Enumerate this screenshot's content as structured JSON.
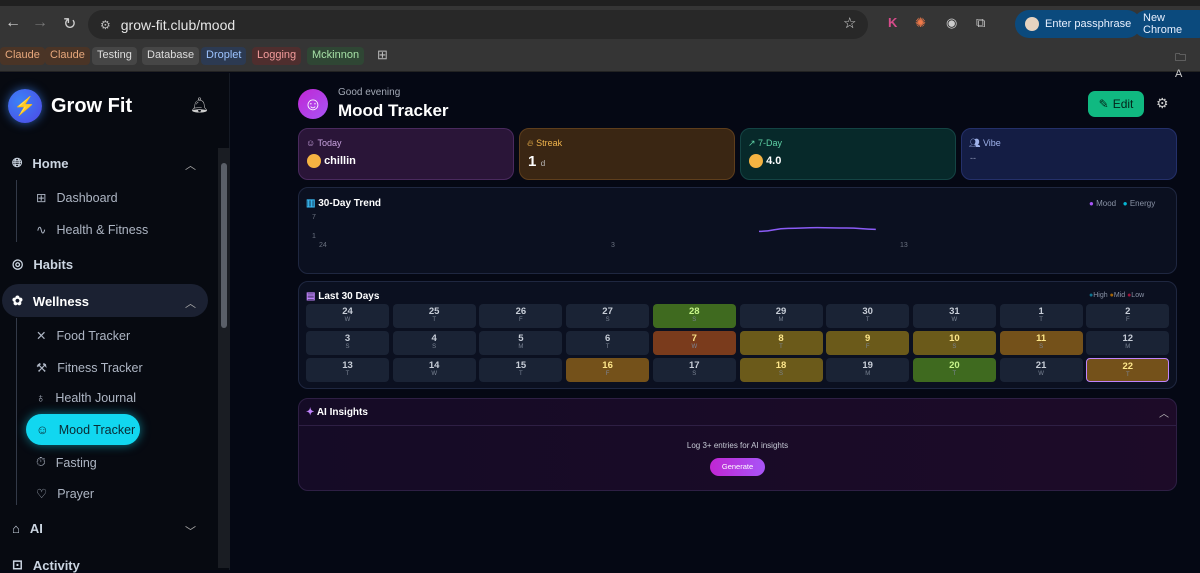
{
  "browser": {
    "url": "grow-fit.club/mood",
    "passphrase": "Enter passphrase",
    "new_chrome": "New Chrome",
    "bookmarks": [
      {
        "label": "Claude",
        "color": "#e8a87c",
        "bg": "#4a3426"
      },
      {
        "label": "Claude",
        "color": "#e8a87c",
        "bg": "#4a3426"
      },
      {
        "label": "Testing",
        "color": "#ddd",
        "bg": "#464646"
      },
      {
        "label": "Database",
        "color": "#ddd",
        "bg": "#464646"
      },
      {
        "label": "Droplet",
        "color": "#9cc3ff",
        "bg": "#2c3a52"
      },
      {
        "label": "Logging",
        "color": "#f29b9b",
        "bg": "#4f2e2e"
      },
      {
        "label": "Mckinnon",
        "color": "#a6e0a6",
        "bg": "#2f4634"
      }
    ],
    "other_bookmarks": "A"
  },
  "sidebar": {
    "brand": "Grow Fit",
    "sections": [
      {
        "label": "Home"
      },
      {
        "label": "Habits"
      },
      {
        "label": "Wellness"
      },
      {
        "label": "AI"
      },
      {
        "label": "Activity"
      }
    ],
    "home_items": [
      {
        "label": "Dashboard"
      },
      {
        "label": "Health & Fitness"
      }
    ],
    "wellness_items": [
      {
        "label": "Food Tracker"
      },
      {
        "label": "Fitness Tracker"
      },
      {
        "label": "Health Journal"
      },
      {
        "label": "Mood Tracker"
      },
      {
        "label": "Fasting"
      },
      {
        "label": "Prayer"
      }
    ]
  },
  "header": {
    "greeting": "Good evening",
    "title": "Mood Tracker",
    "edit": "Edit"
  },
  "stats": {
    "today": {
      "label": "Today",
      "value": "chillin"
    },
    "streak": {
      "label": "Streak",
      "value": "1",
      "unit": "d"
    },
    "seven_day": {
      "label": "7-Day",
      "value": "4.0"
    },
    "vibe": {
      "label": "Vibe",
      "value": "--"
    }
  },
  "trend": {
    "title": "30-Day Trend",
    "legend": [
      "Mood",
      "Energy"
    ],
    "colors": {
      "mood": "#a855f7",
      "energy": "#06b6d4"
    },
    "y_ticks": [
      "7",
      "1"
    ],
    "x_ticks": [
      "24",
      "3",
      "13"
    ]
  },
  "chart_data": {
    "type": "line",
    "title": "30-Day Trend",
    "ylim": [
      1,
      7
    ],
    "x_ticks": [
      "24",
      "3",
      "13"
    ],
    "series": [
      {
        "name": "Mood",
        "x": [
          "7",
          "8",
          "9",
          "10",
          "11"
        ],
        "values": [
          2.4,
          3.3,
          3.5,
          3.4,
          3.0
        ]
      }
    ]
  },
  "calendar": {
    "title": "Last 30 Days",
    "legend": [
      {
        "label": "High",
        "color": "#0e7490"
      },
      {
        "label": "Mid",
        "color": "#a16207"
      },
      {
        "label": "Low",
        "color": "#9f1239"
      }
    ],
    "days": [
      {
        "n": "24",
        "d": "W"
      },
      {
        "n": "25",
        "d": "T"
      },
      {
        "n": "26",
        "d": "F"
      },
      {
        "n": "27",
        "d": "S"
      },
      {
        "n": "28",
        "d": "S",
        "c": "green"
      },
      {
        "n": "29",
        "d": "M"
      },
      {
        "n": "30",
        "d": "T"
      },
      {
        "n": "31",
        "d": "W"
      },
      {
        "n": "1",
        "d": "T"
      },
      {
        "n": "2",
        "d": "F"
      },
      {
        "n": "3",
        "d": "S"
      },
      {
        "n": "4",
        "d": "S"
      },
      {
        "n": "5",
        "d": "M"
      },
      {
        "n": "6",
        "d": "T"
      },
      {
        "n": "7",
        "d": "W",
        "c": "rust"
      },
      {
        "n": "8",
        "d": "T",
        "c": "olive"
      },
      {
        "n": "9",
        "d": "F",
        "c": "olive"
      },
      {
        "n": "10",
        "d": "S",
        "c": "olive"
      },
      {
        "n": "11",
        "d": "S",
        "c": "amber"
      },
      {
        "n": "12",
        "d": "M"
      },
      {
        "n": "13",
        "d": "T"
      },
      {
        "n": "14",
        "d": "W"
      },
      {
        "n": "15",
        "d": "T"
      },
      {
        "n": "16",
        "d": "F",
        "c": "amber"
      },
      {
        "n": "17",
        "d": "S"
      },
      {
        "n": "18",
        "d": "S",
        "c": "olive"
      },
      {
        "n": "19",
        "d": "M"
      },
      {
        "n": "20",
        "d": "T",
        "c": "green"
      },
      {
        "n": "21",
        "d": "W"
      },
      {
        "n": "22",
        "d": "T",
        "c": "amber",
        "today": true
      }
    ]
  },
  "insights": {
    "title": "AI Insights",
    "message": "Log 3+ entries for AI insights",
    "button": "Generate"
  }
}
